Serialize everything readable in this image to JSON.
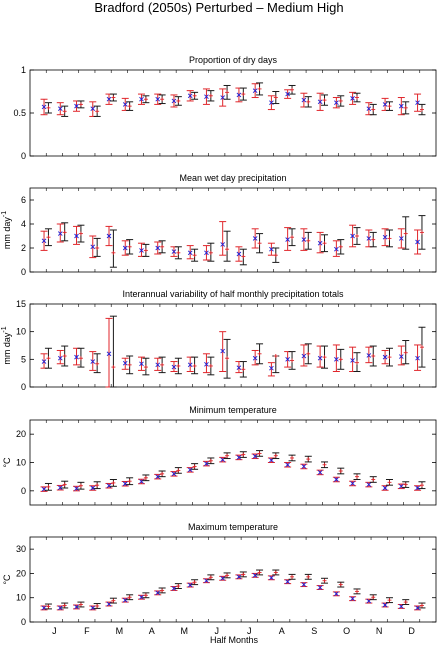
{
  "figure": {
    "title": "Bradford (2050s) Perturbed – Medium High",
    "xlabel": "Half Months",
    "month_labels": [
      "J",
      "F",
      "M",
      "A",
      "M",
      "J",
      "J",
      "A",
      "S",
      "O",
      "N",
      "D"
    ]
  },
  "colors": {
    "observed": "#e0262b",
    "model": "#1a1a1a",
    "obs_mean": "#1f1fd6",
    "model_mean": "#e0262b"
  },
  "chart_data": [
    {
      "type": "errorbar",
      "title": "Proportion of dry days",
      "ylabel": "",
      "ylim": [
        0,
        1
      ],
      "yticks": [
        0,
        0.5,
        1
      ],
      "ytick_labels": [
        "0",
        "0.5",
        "1"
      ],
      "x": [
        1,
        2,
        3,
        4,
        5,
        6,
        7,
        8,
        9,
        10,
        11,
        12,
        13,
        14,
        15,
        16,
        17,
        18,
        19,
        20,
        21,
        22,
        23,
        24
      ],
      "series": [
        {
          "role": "observed",
          "mean": [
            0.57,
            0.55,
            0.58,
            0.55,
            0.66,
            0.6,
            0.66,
            0.66,
            0.64,
            0.7,
            0.69,
            0.68,
            0.71,
            0.76,
            0.62,
            0.72,
            0.65,
            0.63,
            0.62,
            0.67,
            0.55,
            0.6,
            0.58,
            0.62
          ],
          "low": [
            0.48,
            0.48,
            0.52,
            0.46,
            0.6,
            0.53,
            0.6,
            0.6,
            0.57,
            0.64,
            0.6,
            0.58,
            0.63,
            0.68,
            0.54,
            0.67,
            0.57,
            0.53,
            0.56,
            0.6,
            0.48,
            0.53,
            0.48,
            0.52
          ],
          "high": [
            0.66,
            0.62,
            0.64,
            0.63,
            0.72,
            0.67,
            0.72,
            0.72,
            0.71,
            0.76,
            0.78,
            0.78,
            0.79,
            0.84,
            0.7,
            0.77,
            0.73,
            0.73,
            0.68,
            0.74,
            0.62,
            0.67,
            0.68,
            0.72
          ]
        },
        {
          "role": "model",
          "mean": [
            0.56,
            0.52,
            0.6,
            0.52,
            0.68,
            0.58,
            0.66,
            0.66,
            0.64,
            0.7,
            0.7,
            0.74,
            0.72,
            0.78,
            0.68,
            0.77,
            0.63,
            0.65,
            0.64,
            0.68,
            0.54,
            0.58,
            0.56,
            0.54
          ],
          "low": [
            0.5,
            0.46,
            0.56,
            0.46,
            0.64,
            0.53,
            0.62,
            0.61,
            0.59,
            0.66,
            0.64,
            0.66,
            0.65,
            0.71,
            0.61,
            0.72,
            0.57,
            0.59,
            0.58,
            0.63,
            0.48,
            0.53,
            0.49,
            0.48
          ],
          "high": [
            0.62,
            0.58,
            0.64,
            0.58,
            0.72,
            0.63,
            0.7,
            0.71,
            0.69,
            0.74,
            0.76,
            0.82,
            0.79,
            0.85,
            0.75,
            0.82,
            0.69,
            0.71,
            0.7,
            0.73,
            0.6,
            0.63,
            0.63,
            0.6
          ]
        }
      ]
    },
    {
      "type": "errorbar",
      "title": "Mean wet day precipitation",
      "ylabel": "mm day",
      "ylabel_sup": "-1",
      "ylim": [
        0,
        7
      ],
      "yticks": [
        0,
        2,
        4,
        6
      ],
      "ytick_labels": [
        "0",
        "2",
        "4",
        "6"
      ],
      "x": [
        1,
        2,
        3,
        4,
        5,
        6,
        7,
        8,
        9,
        10,
        11,
        12,
        13,
        14,
        15,
        16,
        17,
        18,
        19,
        20,
        21,
        22,
        23,
        24
      ],
      "series": [
        {
          "role": "observed",
          "mean": [
            2.6,
            3.2,
            3.0,
            2.1,
            3.0,
            2.0,
            1.8,
            2.0,
            1.7,
            1.6,
            1.6,
            2.3,
            1.5,
            2.8,
            1.9,
            2.7,
            2.7,
            2.4,
            1.9,
            3.0,
            2.8,
            2.9,
            2.8,
            2.5
          ],
          "low": [
            1.8,
            2.5,
            2.3,
            1.2,
            2.2,
            1.4,
            1.3,
            1.5,
            1.3,
            1.1,
            1.0,
            1.4,
            0.9,
            2.0,
            1.4,
            1.8,
            1.8,
            1.6,
            1.3,
            2.1,
            2.1,
            2.2,
            2.0,
            1.5
          ],
          "high": [
            3.4,
            4.0,
            3.8,
            3.0,
            3.8,
            2.6,
            2.4,
            2.5,
            2.1,
            2.2,
            2.2,
            4.2,
            2.1,
            3.6,
            2.4,
            3.7,
            3.6,
            3.3,
            2.6,
            3.9,
            3.5,
            3.6,
            3.6,
            3.5
          ]
        },
        {
          "role": "model",
          "mean": [
            2.9,
            3.3,
            3.2,
            2.0,
            1.6,
            2.1,
            1.8,
            2.1,
            1.6,
            1.4,
            1.6,
            1.9,
            1.3,
            2.4,
            1.4,
            2.9,
            2.6,
            2.4,
            2.1,
            3.0,
            2.7,
            2.8,
            3.2,
            3.3
          ],
          "low": [
            2.2,
            2.6,
            2.5,
            1.3,
            0.4,
            1.5,
            1.3,
            1.6,
            1.1,
            0.9,
            0.9,
            0.9,
            0.6,
            1.6,
            0.8,
            2.2,
            1.9,
            1.7,
            1.5,
            2.3,
            2.1,
            2.1,
            1.9,
            1.9
          ],
          "high": [
            3.6,
            4.1,
            3.9,
            2.8,
            3.5,
            2.7,
            2.3,
            2.6,
            2.1,
            1.9,
            2.4,
            3.4,
            1.9,
            3.2,
            2.0,
            3.6,
            3.3,
            3.1,
            2.7,
            3.7,
            3.3,
            3.5,
            4.6,
            4.7
          ]
        }
      ]
    },
    {
      "type": "errorbar",
      "title": "Interannual variability of half monthly precipitation totals",
      "ylabel": "mm day",
      "ylabel_sup": "-1",
      "ylim": [
        0,
        15
      ],
      "yticks": [
        0,
        5,
        10,
        15
      ],
      "ytick_labels": [
        "0",
        "5",
        "10",
        "15"
      ],
      "x": [
        1,
        2,
        3,
        4,
        5,
        6,
        7,
        8,
        9,
        10,
        11,
        12,
        13,
        14,
        15,
        16,
        17,
        18,
        19,
        20,
        21,
        22,
        23,
        24
      ],
      "series": [
        {
          "role": "observed",
          "mean": [
            4.6,
            5.2,
            5.4,
            4.6,
            6.0,
            4.3,
            4.2,
            4.0,
            3.6,
            4.0,
            4.1,
            6.5,
            3.5,
            5.2,
            3.4,
            5.0,
            5.6,
            5.2,
            5.0,
            4.8,
            5.7,
            5.4,
            5.5,
            5.2
          ],
          "low": [
            3.4,
            4.2,
            4.0,
            3.0,
            0.0,
            3.2,
            3.0,
            3.0,
            2.8,
            2.8,
            2.6,
            2.8,
            2.6,
            4.0,
            2.0,
            3.6,
            3.8,
            3.6,
            2.8,
            2.8,
            4.4,
            4.2,
            4.0,
            3.0
          ],
          "high": [
            6.0,
            6.6,
            7.0,
            6.4,
            12.4,
            5.2,
            5.4,
            5.2,
            4.6,
            5.4,
            6.0,
            10.0,
            4.6,
            6.6,
            4.4,
            6.4,
            7.6,
            7.4,
            7.6,
            7.2,
            7.2,
            6.6,
            7.4,
            7.6
          ]
        },
        {
          "role": "model",
          "mean": [
            5.2,
            5.6,
            5.2,
            4.2,
            3.6,
            4.0,
            3.6,
            4.0,
            3.8,
            3.8,
            3.8,
            5.2,
            3.2,
            6.0,
            5.6,
            4.8,
            6.0,
            5.4,
            5.0,
            4.4,
            5.6,
            5.4,
            6.2,
            7.2
          ],
          "low": [
            3.4,
            3.8,
            3.6,
            2.6,
            0.0,
            2.4,
            2.2,
            2.6,
            2.4,
            2.4,
            2.2,
            1.6,
            1.8,
            4.2,
            2.6,
            3.2,
            4.2,
            3.4,
            3.2,
            2.8,
            3.8,
            3.8,
            4.2,
            3.6
          ],
          "high": [
            7.0,
            7.4,
            7.0,
            6.0,
            12.8,
            5.6,
            5.2,
            5.4,
            5.2,
            5.4,
            5.4,
            8.6,
            4.6,
            7.8,
            5.6,
            6.4,
            7.8,
            7.4,
            6.8,
            6.2,
            7.4,
            7.0,
            8.4,
            10.8
          ]
        }
      ]
    },
    {
      "type": "errorbar",
      "title": "Minimum temperature",
      "ylabel": "°C",
      "ylim": [
        -5,
        25
      ],
      "yticks": [
        0,
        10,
        20
      ],
      "ytick_labels": [
        "0",
        "10",
        "20"
      ],
      "x": [
        1,
        2,
        3,
        4,
        5,
        6,
        7,
        8,
        9,
        10,
        11,
        12,
        13,
        14,
        15,
        16,
        17,
        18,
        19,
        20,
        21,
        22,
        23,
        24
      ],
      "series": [
        {
          "role": "observed",
          "mean": [
            0.6,
            1.1,
            0.8,
            1.0,
            1.8,
            2.5,
            3.3,
            5.0,
            6.0,
            7.4,
            9.6,
            11.0,
            11.8,
            12.2,
            10.8,
            9.2,
            8.6,
            6.5,
            4.0,
            2.6,
            2.2,
            1.0,
            1.6,
            1.0
          ],
          "low": [
            -0.2,
            0.3,
            0.0,
            0.2,
            1.0,
            1.7,
            2.5,
            4.2,
            5.2,
            6.6,
            8.8,
            10.2,
            11.0,
            11.4,
            10.0,
            8.4,
            7.8,
            5.7,
            3.2,
            1.8,
            1.4,
            0.2,
            0.8,
            0.2
          ],
          "high": [
            1.4,
            1.9,
            1.6,
            1.8,
            2.6,
            3.3,
            4.1,
            5.8,
            6.8,
            8.2,
            10.4,
            11.8,
            12.6,
            13.0,
            11.6,
            10.0,
            9.4,
            7.3,
            4.8,
            3.4,
            3.0,
            1.8,
            2.4,
            1.8
          ]
        },
        {
          "role": "model",
          "mean": [
            1.4,
            2.2,
            1.8,
            2.0,
            2.8,
            3.4,
            4.6,
            6.0,
            7.2,
            8.6,
            10.6,
            12.4,
            12.8,
            13.2,
            12.4,
            11.6,
            11.2,
            9.2,
            7.0,
            5.0,
            4.0,
            3.0,
            2.2,
            2.0
          ],
          "low": [
            0.2,
            1.0,
            0.6,
            0.8,
            1.6,
            2.2,
            3.6,
            5.0,
            6.2,
            7.6,
            9.6,
            11.4,
            11.8,
            12.2,
            11.4,
            10.6,
            10.2,
            8.2,
            6.0,
            4.0,
            3.0,
            2.0,
            1.2,
            0.8
          ],
          "high": [
            2.6,
            3.4,
            3.0,
            3.2,
            4.0,
            4.6,
            5.6,
            7.0,
            8.2,
            9.6,
            11.6,
            13.4,
            13.8,
            14.2,
            13.4,
            12.6,
            12.2,
            10.2,
            8.0,
            6.0,
            5.0,
            4.0,
            3.2,
            3.2
          ]
        }
      ]
    },
    {
      "type": "errorbar",
      "title": "Maximum temperature",
      "ylabel": "°C",
      "ylim": [
        0,
        35
      ],
      "yticks": [
        0,
        10,
        20,
        30
      ],
      "ytick_labels": [
        "0",
        "10",
        "20",
        "30"
      ],
      "x": [
        1,
        2,
        3,
        4,
        5,
        6,
        7,
        8,
        9,
        10,
        11,
        12,
        13,
        14,
        15,
        16,
        17,
        18,
        19,
        20,
        21,
        22,
        23,
        24
      ],
      "series": [
        {
          "role": "observed",
          "mean": [
            5.8,
            5.8,
            6.2,
            5.8,
            7.4,
            9.0,
            10.2,
            12.0,
            13.8,
            15.2,
            17.0,
            18.0,
            18.6,
            19.2,
            18.2,
            16.6,
            15.4,
            14.2,
            11.6,
            9.6,
            8.6,
            7.0,
            6.4,
            5.8
          ],
          "low": [
            5.0,
            5.0,
            5.4,
            5.0,
            6.6,
            8.2,
            9.4,
            11.2,
            13.0,
            14.4,
            16.2,
            17.2,
            17.8,
            18.4,
            17.4,
            15.8,
            14.6,
            13.4,
            10.8,
            8.8,
            7.8,
            6.2,
            5.6,
            5.0
          ],
          "high": [
            6.6,
            6.6,
            7.0,
            6.6,
            8.2,
            9.8,
            11.0,
            12.8,
            14.6,
            16.0,
            17.8,
            18.8,
            19.4,
            20.0,
            19.0,
            17.4,
            16.2,
            15.0,
            12.4,
            10.4,
            9.4,
            7.8,
            7.2,
            6.6
          ]
        },
        {
          "role": "model",
          "mean": [
            6.4,
            6.8,
            7.2,
            6.6,
            8.8,
            10.2,
            11.0,
            13.0,
            14.8,
            16.4,
            18.4,
            19.2,
            19.6,
            20.4,
            20.4,
            18.6,
            18.6,
            17.0,
            15.4,
            12.6,
            10.2,
            9.0,
            8.2,
            6.8
          ],
          "low": [
            5.4,
            5.8,
            6.2,
            5.6,
            7.8,
            9.2,
            10.0,
            12.0,
            13.8,
            15.4,
            17.4,
            18.2,
            18.6,
            19.4,
            19.4,
            17.6,
            17.6,
            16.0,
            14.4,
            11.6,
            9.2,
            8.0,
            7.2,
            5.8
          ],
          "high": [
            7.4,
            7.8,
            8.2,
            7.6,
            9.8,
            11.2,
            12.0,
            14.0,
            15.8,
            17.4,
            19.4,
            20.2,
            20.6,
            21.4,
            21.4,
            19.6,
            19.6,
            18.0,
            16.4,
            13.6,
            11.2,
            10.0,
            9.2,
            7.8
          ]
        }
      ]
    }
  ]
}
